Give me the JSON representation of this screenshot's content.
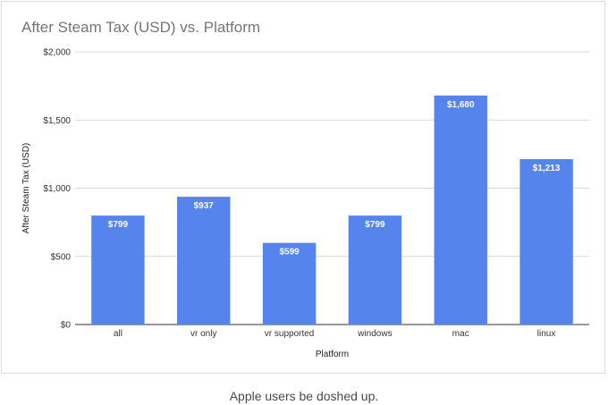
{
  "chart_data": {
    "type": "bar",
    "title": "After Steam Tax (USD) vs. Platform",
    "xlabel": "Platform",
    "ylabel": "After Steam Tax (USD)",
    "categories": [
      "all",
      "vr only",
      "vr supported",
      "windows",
      "mac",
      "linux"
    ],
    "values": [
      799,
      937,
      599,
      799,
      1680,
      1213
    ],
    "data_labels": [
      "$799",
      "$937",
      "$599",
      "$799",
      "$1,680",
      "$1,213"
    ],
    "ylim": [
      0,
      2000
    ],
    "yticks": [
      0,
      500,
      1000,
      1500,
      2000
    ],
    "ytick_labels": [
      "$0",
      "$500",
      "$1,000",
      "$1,500",
      "$2,000"
    ],
    "grid": true,
    "bar_color": "#5584ed"
  },
  "caption": "Apple users be doshed up."
}
